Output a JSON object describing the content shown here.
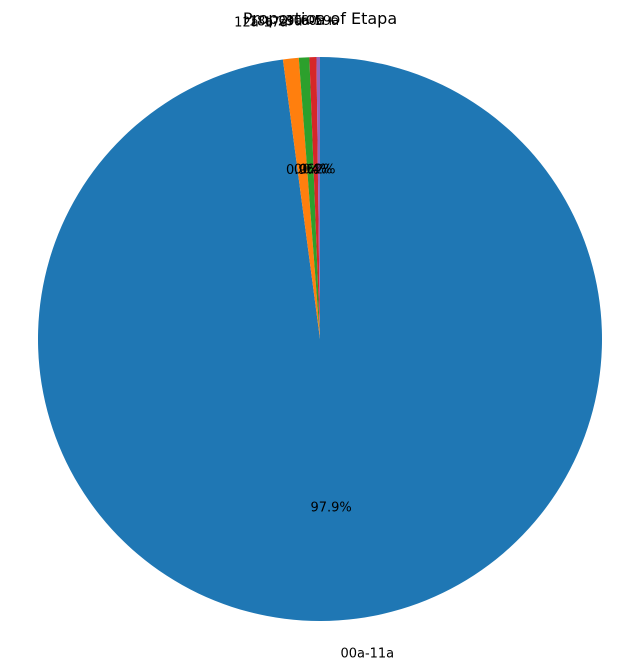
{
  "chart_data": {
    "type": "pie",
    "title": "Proportion of Etapa",
    "categories": [
      "00a-11a",
      "12a-17a",
      "18a-29a",
      "30a-59a",
      "60a+"
    ],
    "values": [
      97.9,
      0.9,
      0.6,
      0.4,
      0.2
    ],
    "percent_labels": [
      "97.9%",
      "0.9%",
      "0.6%",
      "0.4%",
      "0.2%"
    ],
    "colors": [
      "#1f77b4",
      "#ff7f0e",
      "#2ca02c",
      "#d62728",
      "#9467bd"
    ],
    "start_angle_deg": 90,
    "direction": "clockwise"
  }
}
